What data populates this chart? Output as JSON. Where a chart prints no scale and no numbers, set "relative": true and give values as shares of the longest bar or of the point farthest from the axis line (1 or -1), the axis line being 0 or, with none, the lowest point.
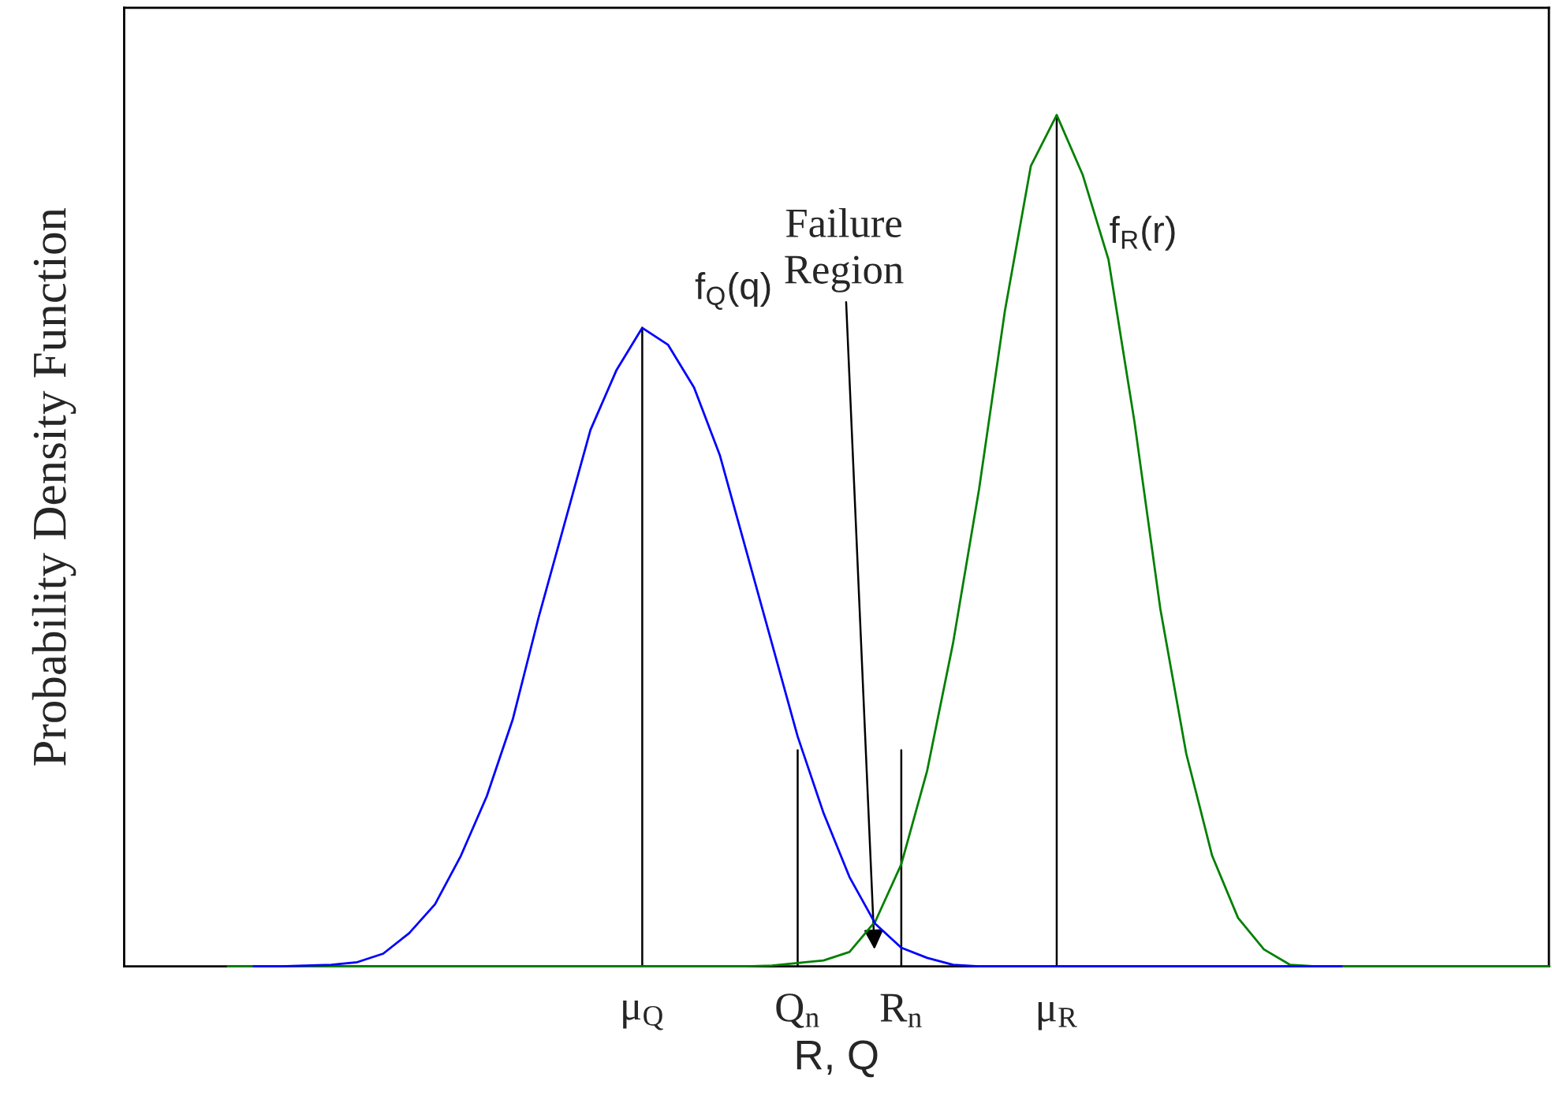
{
  "chart_data": {
    "type": "line",
    "relative": true,
    "xlabel": "R, Q",
    "ylabel": "Probability Density Function",
    "categories": [
      null,
      null,
      null,
      null,
      null,
      null,
      null,
      null,
      null,
      null,
      null,
      null,
      null,
      null,
      null,
      null,
      null,
      null,
      null,
      null,
      "μ$_{Q}$",
      null,
      null,
      null,
      null,
      null,
      "Q$_{n}$",
      null,
      null,
      null,
      "R$_{n}$",
      null,
      null,
      null,
      null,
      null,
      "μ$_{R}$",
      null,
      null,
      null,
      null,
      null,
      null,
      null,
      null,
      null,
      null,
      null,
      null,
      null,
      null,
      null,
      null,
      null,
      null,
      null
    ],
    "series": [
      {
        "name": "f$_{Q}$(q)",
        "color": "#0000ff",
        "values": [
          null,
          null,
          null,
          null,
          null,
          0,
          0,
          0.001,
          0.002,
          0.005,
          0.015,
          0.039,
          0.073,
          0.13,
          0.2,
          0.29,
          0.41,
          0.52,
          0.63,
          0.7,
          0.75,
          0.73,
          0.68,
          0.6,
          0.49,
          0.38,
          0.27,
          0.18,
          0.105,
          0.05,
          0.022,
          0.01,
          0.002,
          0,
          0,
          0,
          0,
          0,
          0,
          0,
          0,
          0,
          0,
          0,
          0,
          0,
          0,
          0,
          null,
          null,
          null,
          null,
          null,
          null,
          null,
          null
        ]
      },
      {
        "name": "f$_{R}$(r)",
        "color": "#008000",
        "values": [
          null,
          null,
          null,
          null,
          0,
          0,
          0,
          0,
          0,
          0,
          0,
          0,
          0,
          0,
          0,
          0,
          0,
          0,
          0,
          0,
          0,
          0,
          0,
          0,
          0,
          0.001,
          0.004,
          0.007,
          0.017,
          0.053,
          0.12,
          0.23,
          0.38,
          0.56,
          0.77,
          0.94,
          1.0,
          0.93,
          0.83,
          0.64,
          0.42,
          0.25,
          0.13,
          0.057,
          0.02,
          0.002,
          0,
          0,
          0,
          0,
          0,
          0,
          0,
          0,
          0,
          0
        ]
      }
    ],
    "ref_lines": [
      {
        "axis": "x",
        "value": "μ$_{Q}$",
        "color": "#000000"
      },
      {
        "axis": "x",
        "value": "Q$_{n}$",
        "color": "#000000"
      },
      {
        "axis": "x",
        "value": "R$_{n}$",
        "color": "#000000"
      },
      {
        "axis": "x",
        "value": "μ$_{R}$",
        "color": "#000000"
      }
    ],
    "annotations": [
      "Failure\nRegion"
    ],
    "grid": false,
    "legend": false
  }
}
